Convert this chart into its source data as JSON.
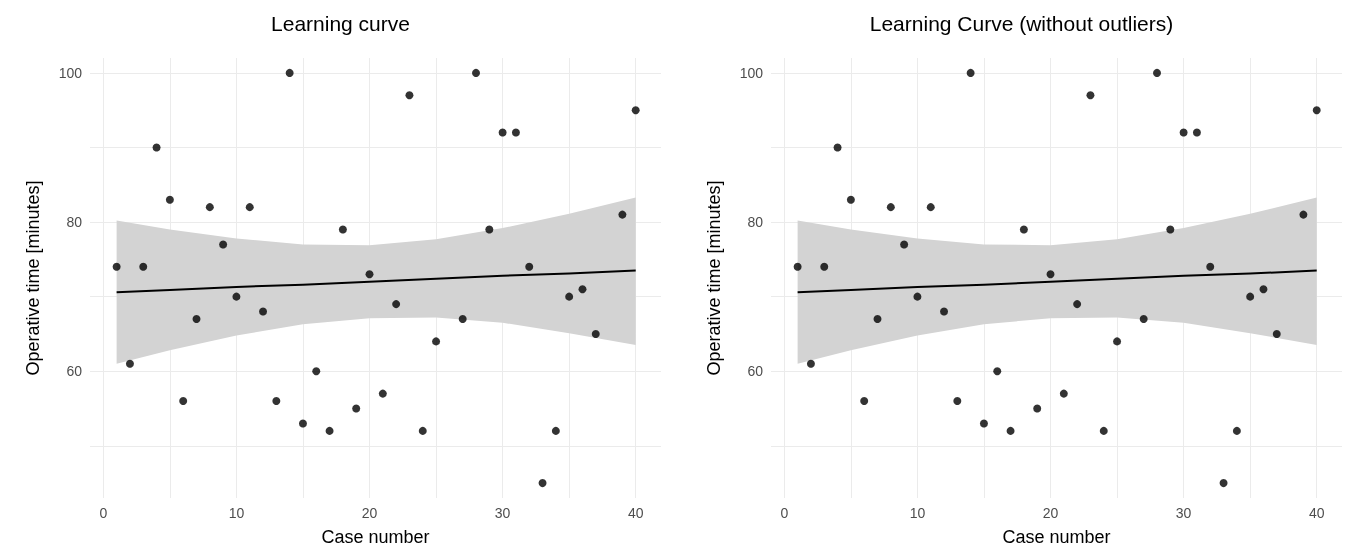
{
  "chart_data": [
    {
      "type": "scatter",
      "title": "Learning curve",
      "xlabel": "Case number",
      "ylabel": "Operative time [minutes]",
      "xlim": [
        -1,
        41.9
      ],
      "ylim": [
        43,
        102
      ],
      "xticks": [
        0,
        {
          "value": 5,
          "label": null
        },
        10,
        {
          "value": 15,
          "label": null
        },
        20,
        {
          "value": 25,
          "label": null
        },
        30,
        {
          "value": 35,
          "label": null
        },
        40
      ],
      "yticks": [
        {
          "value": 50,
          "label": null
        },
        60,
        {
          "value": 70,
          "label": null
        },
        80,
        {
          "value": 90,
          "label": null
        },
        100
      ],
      "grid": true,
      "series": [
        {
          "marker": "circle",
          "color": "#000000",
          "x": [
            1,
            2,
            3,
            4,
            5,
            6,
            7,
            8,
            9,
            10,
            11,
            12,
            13,
            14,
            15,
            16,
            17,
            18,
            19,
            20,
            21,
            22,
            23,
            24,
            25,
            27,
            28,
            29,
            30,
            31,
            32,
            33,
            34,
            35,
            36,
            37,
            39,
            40
          ],
          "values": [
            74,
            61,
            74,
            90,
            83,
            56,
            67,
            82,
            77,
            70,
            82,
            68,
            56,
            100,
            53,
            60,
            52,
            79,
            55,
            73,
            57,
            69,
            97,
            52,
            64,
            67,
            100,
            79,
            92,
            92,
            74,
            45,
            52,
            70,
            71,
            65,
            81,
            95
          ]
        },
        {
          "type": "line",
          "marker": "none",
          "color": "#000000",
          "x": [
            1,
            5,
            10,
            15,
            20,
            25,
            30,
            35,
            40
          ],
          "values": [
            70.6,
            70.9,
            71.3,
            71.6,
            72.0,
            72.4,
            72.8,
            73.1,
            73.5
          ],
          "lower": [
            61.0,
            62.8,
            64.8,
            66.3,
            67.1,
            67.2,
            66.5,
            65.1,
            63.5
          ],
          "upper": [
            80.2,
            79.0,
            77.8,
            77.0,
            76.9,
            77.7,
            79.2,
            81.1,
            83.3
          ]
        }
      ]
    },
    {
      "type": "scatter",
      "title": "Learning Curve (without outliers)",
      "xlabel": "Case number",
      "ylabel": "Operative time [minutes]",
      "xlim": [
        -1,
        41.9
      ],
      "ylim": [
        43,
        102
      ],
      "xticks": [
        0,
        {
          "value": 5,
          "label": null
        },
        10,
        {
          "value": 15,
          "label": null
        },
        20,
        {
          "value": 25,
          "label": null
        },
        30,
        {
          "value": 35,
          "label": null
        },
        40
      ],
      "yticks": [
        {
          "value": 50,
          "label": null
        },
        60,
        {
          "value": 70,
          "label": null
        },
        80,
        {
          "value": 90,
          "label": null
        },
        100
      ],
      "grid": true,
      "series": [
        {
          "marker": "circle",
          "color": "#000000",
          "x": [
            1,
            2,
            3,
            4,
            5,
            6,
            7,
            8,
            9,
            10,
            11,
            12,
            13,
            14,
            15,
            16,
            17,
            18,
            19,
            20,
            21,
            22,
            23,
            24,
            25,
            27,
            28,
            29,
            30,
            31,
            32,
            33,
            34,
            35,
            36,
            37,
            39,
            40
          ],
          "values": [
            74,
            61,
            74,
            90,
            83,
            56,
            67,
            82,
            77,
            70,
            82,
            68,
            56,
            100,
            53,
            60,
            52,
            79,
            55,
            73,
            57,
            69,
            97,
            52,
            64,
            67,
            100,
            79,
            92,
            92,
            74,
            45,
            52,
            70,
            71,
            65,
            81,
            95
          ]
        },
        {
          "type": "line",
          "marker": "none",
          "color": "#000000",
          "x": [
            1,
            5,
            10,
            15,
            20,
            25,
            30,
            35,
            40
          ],
          "values": [
            70.6,
            70.9,
            71.3,
            71.6,
            72.0,
            72.4,
            72.8,
            73.1,
            73.5
          ],
          "lower": [
            61.0,
            62.8,
            64.8,
            66.3,
            67.1,
            67.2,
            66.5,
            65.1,
            63.5
          ],
          "upper": [
            80.2,
            79.0,
            77.8,
            77.0,
            76.9,
            77.7,
            79.2,
            81.1,
            83.3
          ]
        }
      ]
    }
  ]
}
